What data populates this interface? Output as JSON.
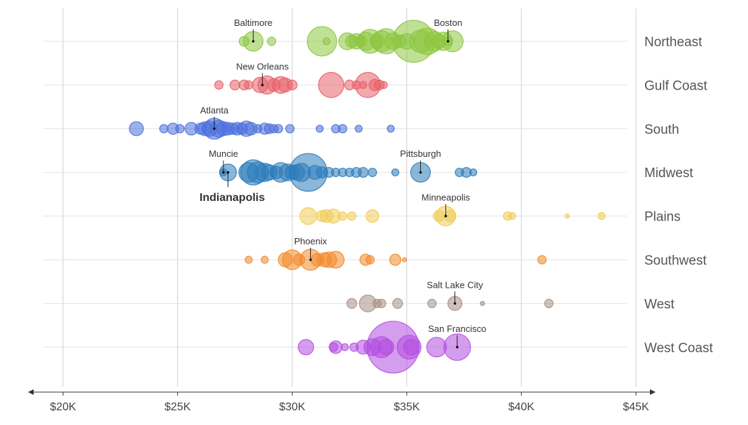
{
  "chart_data": {
    "type": "scatter",
    "title": "",
    "xlabel": "",
    "ylabel": "",
    "xlim": [
      20000,
      45000
    ],
    "x_ticks": [
      {
        "value": 20000,
        "label": "$20K"
      },
      {
        "value": 25000,
        "label": "$25K"
      },
      {
        "value": 30000,
        "label": "$30K"
      },
      {
        "value": 35000,
        "label": "$35K"
      },
      {
        "value": 40000,
        "label": "$40K"
      },
      {
        "value": 45000,
        "label": "$45K"
      }
    ],
    "grid": true,
    "size_encoding": "relative bubble size (radius)",
    "series": [
      {
        "name": "Northeast",
        "color": "#8cc63f",
        "points": [
          {
            "x": 27900,
            "r": 7
          },
          {
            "x": 28300,
            "r": 14
          },
          {
            "x": 29100,
            "r": 6
          },
          {
            "x": 31300,
            "r": 21
          },
          {
            "x": 31500,
            "r": 5
          },
          {
            "x": 32400,
            "r": 12
          },
          {
            "x": 32600,
            "r": 9
          },
          {
            "x": 32800,
            "r": 11
          },
          {
            "x": 33000,
            "r": 8
          },
          {
            "x": 33200,
            "r": 13
          },
          {
            "x": 33400,
            "r": 17
          },
          {
            "x": 33700,
            "r": 10
          },
          {
            "x": 33900,
            "r": 15
          },
          {
            "x": 34100,
            "r": 18
          },
          {
            "x": 34400,
            "r": 12
          },
          {
            "x": 34700,
            "r": 9
          },
          {
            "x": 35000,
            "r": 11
          },
          {
            "x": 35300,
            "r": 30
          },
          {
            "x": 35600,
            "r": 16
          },
          {
            "x": 35900,
            "r": 19
          },
          {
            "x": 36200,
            "r": 14
          },
          {
            "x": 36400,
            "r": 10
          },
          {
            "x": 36600,
            "r": 13
          },
          {
            "x": 36800,
            "r": 6
          },
          {
            "x": 37000,
            "r": 15
          }
        ],
        "labels": [
          {
            "text": "Baltimore",
            "x": 28300
          },
          {
            "text": "Boston",
            "x": 36800
          }
        ]
      },
      {
        "name": "Gulf Coast",
        "color": "#e8616a",
        "points": [
          {
            "x": 26800,
            "r": 6
          },
          {
            "x": 27500,
            "r": 7
          },
          {
            "x": 27900,
            "r": 7
          },
          {
            "x": 28100,
            "r": 6
          },
          {
            "x": 28600,
            "r": 11
          },
          {
            "x": 28900,
            "r": 13
          },
          {
            "x": 29200,
            "r": 9
          },
          {
            "x": 29500,
            "r": 12
          },
          {
            "x": 29700,
            "r": 10
          },
          {
            "x": 30000,
            "r": 7
          },
          {
            "x": 31700,
            "r": 18
          },
          {
            "x": 32500,
            "r": 7
          },
          {
            "x": 32800,
            "r": 6
          },
          {
            "x": 33100,
            "r": 5
          },
          {
            "x": 33300,
            "r": 18
          },
          {
            "x": 33600,
            "r": 8
          },
          {
            "x": 33800,
            "r": 7
          },
          {
            "x": 34000,
            "r": 5
          }
        ],
        "labels": [
          {
            "text": "New Orleans",
            "x": 28700
          }
        ]
      },
      {
        "name": "South",
        "color": "#4a6fdc",
        "points": [
          {
            "x": 23200,
            "r": 10
          },
          {
            "x": 24400,
            "r": 6
          },
          {
            "x": 24800,
            "r": 8
          },
          {
            "x": 25100,
            "r": 6
          },
          {
            "x": 25600,
            "r": 9
          },
          {
            "x": 26000,
            "r": 8
          },
          {
            "x": 26200,
            "r": 10
          },
          {
            "x": 26400,
            "r": 11
          },
          {
            "x": 26600,
            "r": 15
          },
          {
            "x": 26800,
            "r": 12
          },
          {
            "x": 27000,
            "r": 10
          },
          {
            "x": 27200,
            "r": 9
          },
          {
            "x": 27400,
            "r": 8
          },
          {
            "x": 27600,
            "r": 9
          },
          {
            "x": 27800,
            "r": 8
          },
          {
            "x": 28000,
            "r": 11
          },
          {
            "x": 28200,
            "r": 9
          },
          {
            "x": 28500,
            "r": 6
          },
          {
            "x": 28800,
            "r": 8
          },
          {
            "x": 29000,
            "r": 7
          },
          {
            "x": 29200,
            "r": 6
          },
          {
            "x": 29400,
            "r": 6
          },
          {
            "x": 29900,
            "r": 6
          },
          {
            "x": 31200,
            "r": 5
          },
          {
            "x": 31900,
            "r": 6
          },
          {
            "x": 32200,
            "r": 6
          },
          {
            "x": 32900,
            "r": 5
          },
          {
            "x": 34300,
            "r": 5
          }
        ],
        "labels": [
          {
            "text": "Atlanta",
            "x": 26600
          }
        ]
      },
      {
        "name": "Midwest",
        "color": "#2b7bba",
        "points": [
          {
            "x": 27000,
            "r": 5
          },
          {
            "x": 27200,
            "r": 12
          },
          {
            "x": 28100,
            "r": 14
          },
          {
            "x": 28300,
            "r": 18
          },
          {
            "x": 28500,
            "r": 15
          },
          {
            "x": 28800,
            "r": 13
          },
          {
            "x": 29000,
            "r": 11
          },
          {
            "x": 29300,
            "r": 9
          },
          {
            "x": 29500,
            "r": 14
          },
          {
            "x": 29800,
            "r": 12
          },
          {
            "x": 30000,
            "r": 10
          },
          {
            "x": 30200,
            "r": 11
          },
          {
            "x": 30400,
            "r": 13
          },
          {
            "x": 30700,
            "r": 27
          },
          {
            "x": 31000,
            "r": 10
          },
          {
            "x": 31300,
            "r": 8
          },
          {
            "x": 31600,
            "r": 7
          },
          {
            "x": 31900,
            "r": 6
          },
          {
            "x": 32200,
            "r": 6
          },
          {
            "x": 32500,
            "r": 6
          },
          {
            "x": 32800,
            "r": 7
          },
          {
            "x": 33100,
            "r": 7
          },
          {
            "x": 33500,
            "r": 6
          },
          {
            "x": 34500,
            "r": 5
          },
          {
            "x": 35600,
            "r": 14
          },
          {
            "x": 37300,
            "r": 6
          },
          {
            "x": 37600,
            "r": 7
          },
          {
            "x": 37900,
            "r": 5
          }
        ],
        "labels": [
          {
            "text": "Muncie",
            "x": 27000
          },
          {
            "text": "Pittsburgh",
            "x": 35600
          },
          {
            "text": "Indianapolis",
            "x": 27200,
            "bold": true
          }
        ]
      },
      {
        "name": "Plains",
        "color": "#f0cc55",
        "points": [
          {
            "x": 30700,
            "r": 12
          },
          {
            "x": 31300,
            "r": 8
          },
          {
            "x": 31500,
            "r": 9
          },
          {
            "x": 31800,
            "r": 10
          },
          {
            "x": 32200,
            "r": 6
          },
          {
            "x": 32600,
            "r": 6
          },
          {
            "x": 33500,
            "r": 9
          },
          {
            "x": 36400,
            "r": 8
          },
          {
            "x": 36700,
            "r": 14
          },
          {
            "x": 36900,
            "r": 8
          },
          {
            "x": 39400,
            "r": 6
          },
          {
            "x": 39600,
            "r": 5
          },
          {
            "x": 42000,
            "r": 3
          },
          {
            "x": 43500,
            "r": 5
          }
        ],
        "labels": [
          {
            "text": "Minneapolis",
            "x": 36700
          }
        ]
      },
      {
        "name": "Southwest",
        "color": "#f28a2a",
        "points": [
          {
            "x": 28100,
            "r": 5
          },
          {
            "x": 28800,
            "r": 5
          },
          {
            "x": 29700,
            "r": 10
          },
          {
            "x": 30000,
            "r": 14
          },
          {
            "x": 30300,
            "r": 8
          },
          {
            "x": 30800,
            "r": 15
          },
          {
            "x": 31100,
            "r": 9
          },
          {
            "x": 31400,
            "r": 10
          },
          {
            "x": 31600,
            "r": 11
          },
          {
            "x": 31900,
            "r": 12
          },
          {
            "x": 33200,
            "r": 8
          },
          {
            "x": 33400,
            "r": 6
          },
          {
            "x": 34500,
            "r": 8
          },
          {
            "x": 34900,
            "r": 3
          },
          {
            "x": 40900,
            "r": 6
          }
        ],
        "labels": [
          {
            "text": "Phoenix",
            "x": 30800
          }
        ]
      },
      {
        "name": "West",
        "color": "#a88f82",
        "points": [
          {
            "x": 32600,
            "r": 7
          },
          {
            "x": 33300,
            "r": 12
          },
          {
            "x": 33700,
            "r": 6
          },
          {
            "x": 33900,
            "r": 6
          },
          {
            "x": 34600,
            "r": 7
          },
          {
            "x": 36100,
            "r": 6
          },
          {
            "x": 37100,
            "r": 10
          },
          {
            "x": 38300,
            "r": 3
          },
          {
            "x": 41200,
            "r": 6
          }
        ],
        "labels": [
          {
            "text": "Salt Lake City",
            "x": 37100
          }
        ]
      },
      {
        "name": "West Coast",
        "color": "#b34de0",
        "points": [
          {
            "x": 30600,
            "r": 11
          },
          {
            "x": 31800,
            "r": 6
          },
          {
            "x": 31900,
            "r": 9
          },
          {
            "x": 32300,
            "r": 5
          },
          {
            "x": 32700,
            "r": 6
          },
          {
            "x": 33100,
            "r": 10
          },
          {
            "x": 33500,
            "r": 12
          },
          {
            "x": 33900,
            "r": 15
          },
          {
            "x": 34100,
            "r": 11
          },
          {
            "x": 34400,
            "r": 37
          },
          {
            "x": 35100,
            "r": 17
          },
          {
            "x": 35200,
            "r": 11
          },
          {
            "x": 36300,
            "r": 14
          },
          {
            "x": 37200,
            "r": 19
          }
        ],
        "labels": [
          {
            "text": "San Francisco",
            "x": 37200
          }
        ]
      }
    ]
  }
}
